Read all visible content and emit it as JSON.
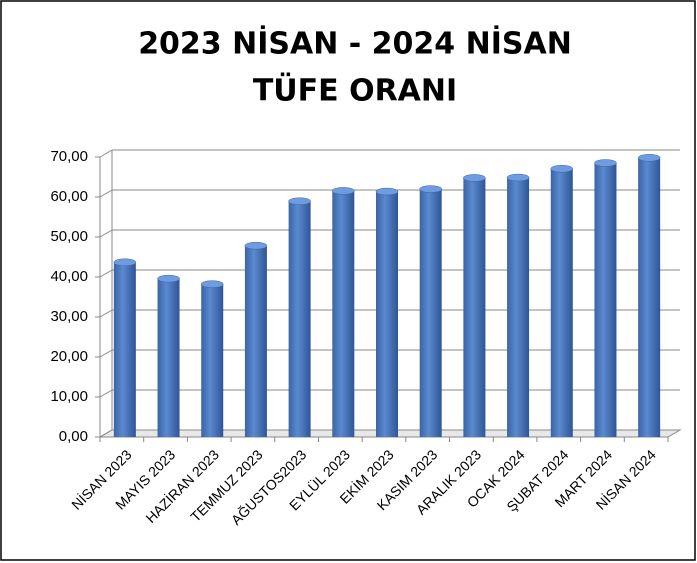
{
  "chart_data": {
    "type": "bar",
    "title": [
      "2023 NİSAN - 2024 NİSAN",
      "TÜFE ORANI"
    ],
    "categories": [
      "NİSAN 2023",
      "MAYIS 2023",
      "HAZİRAN 2023",
      "TEMMUZ 2023",
      "AĞUSTOS2023",
      "EYLÜL 2023",
      "EKİM 2023",
      "KASIM 2023",
      "ARALIK 2023",
      "OCAK 2024",
      "ŞUBAT 2024",
      "MART 2024",
      "NİSAN 2024"
    ],
    "values": [
      43.68,
      39.59,
      38.21,
      47.83,
      58.94,
      61.53,
      61.36,
      61.98,
      64.77,
      64.86,
      67.07,
      68.5,
      69.8
    ],
    "color": "#4a7bc0",
    "ylim": [
      0,
      70
    ],
    "yticks": [
      {
        "value": 0,
        "label": "0,00"
      },
      {
        "value": 10,
        "label": "10,00"
      },
      {
        "value": 20,
        "label": "20,00"
      },
      {
        "value": 30,
        "label": "30,00"
      },
      {
        "value": 40,
        "label": "40,00"
      },
      {
        "value": 50,
        "label": "50,00"
      },
      {
        "value": 60,
        "label": "60,00"
      },
      {
        "value": 70,
        "label": "70,00"
      }
    ],
    "grid": true
  }
}
